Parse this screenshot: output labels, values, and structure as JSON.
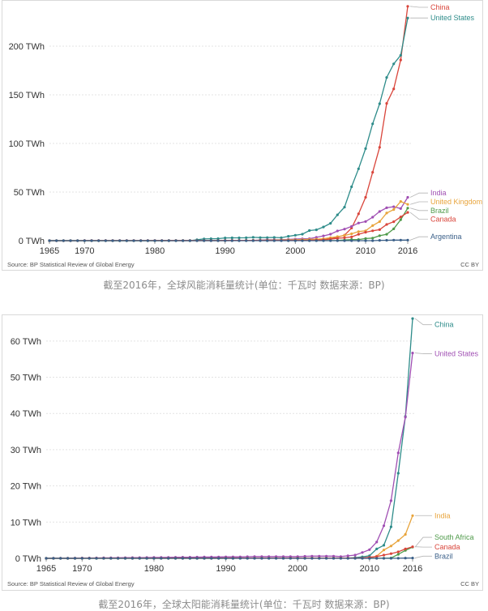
{
  "chart_data": [
    {
      "type": "line",
      "title": "",
      "xlabel": "",
      "ylabel": "",
      "x": [
        1965,
        1966,
        1967,
        1968,
        1969,
        1970,
        1971,
        1972,
        1973,
        1974,
        1975,
        1976,
        1977,
        1978,
        1979,
        1980,
        1981,
        1982,
        1983,
        1984,
        1985,
        1986,
        1987,
        1988,
        1989,
        1990,
        1991,
        1992,
        1993,
        1994,
        1995,
        1996,
        1997,
        1998,
        1999,
        2000,
        2001,
        2002,
        2003,
        2004,
        2005,
        2006,
        2007,
        2008,
        2009,
        2010,
        2011,
        2012,
        2013,
        2014,
        2015,
        2016
      ],
      "xticks": [
        1965,
        1970,
        1980,
        1990,
        2000,
        2010,
        2016
      ],
      "yticks": [
        0,
        50,
        100,
        150,
        200
      ],
      "ytick_labels": [
        "0 TWh",
        "50 TWh",
        "100 TWh",
        "150 TWh",
        "200 TWh"
      ],
      "ylim": [
        0,
        240
      ],
      "xlim": [
        1965,
        2016
      ],
      "grid": true,
      "source": "Source: BP Statistical Review of Global Energy",
      "license": "CC BY",
      "series": [
        {
          "name": "China",
          "color": "#d9453b",
          "legend_y": 240,
          "x": [
            2000,
            2001,
            2002,
            2003,
            2004,
            2005,
            2006,
            2007,
            2008,
            2009,
            2010,
            2011,
            2012,
            2013,
            2014,
            2015,
            2016
          ],
          "values": [
            0.6,
            0.7,
            0.8,
            1,
            1.3,
            1.9,
            3.7,
            5.7,
            13,
            27.6,
            44.6,
            70.3,
            96,
            141.2,
            156.1,
            185.8,
            241
          ]
        },
        {
          "name": "United States",
          "color": "#2e8c8a",
          "legend_y": 229,
          "x": [
            1965,
            1985,
            1987,
            1988,
            1989,
            1990,
            1991,
            1992,
            1993,
            1994,
            1995,
            1996,
            1997,
            1998,
            1999,
            2000,
            2001,
            2002,
            2003,
            2004,
            2005,
            2006,
            2007,
            2008,
            2009,
            2010,
            2011,
            2012,
            2013,
            2014,
            2015,
            2016
          ],
          "values": [
            0,
            0,
            1.8,
            2,
            2.1,
            2.8,
            2.9,
            2.9,
            3,
            3.4,
            3.2,
            3.2,
            3.3,
            3,
            4.5,
            5.6,
            6.7,
            10.4,
            11.2,
            14.1,
            17.8,
            26.6,
            34.5,
            55.4,
            73.9,
            94.7,
            120.2,
            140.8,
            167.8,
            181.8,
            190.7,
            229
          ]
        },
        {
          "name": "India",
          "color": "#a04fb3",
          "legend_y": 49,
          "x": [
            1965,
            1990,
            1992,
            1994,
            1996,
            1998,
            2000,
            2001,
            2002,
            2003,
            2004,
            2005,
            2006,
            2007,
            2008,
            2009,
            2010,
            2011,
            2012,
            2013,
            2014,
            2015,
            2016
          ],
          "values": [
            0,
            0,
            0.1,
            0.3,
            0.9,
            1,
            1.7,
            1.9,
            2.1,
            3.4,
            4.9,
            6.7,
            10,
            11.9,
            14.7,
            18.2,
            19.7,
            24.2,
            30,
            33.8,
            34.9,
            33,
            44.6
          ]
        },
        {
          "name": "United Kingdom",
          "color": "#e8a43b",
          "legend_y": 40,
          "x": [
            1965,
            1990,
            1995,
            2000,
            2002,
            2004,
            2006,
            2007,
            2008,
            2009,
            2010,
            2011,
            2012,
            2013,
            2014,
            2015,
            2016
          ],
          "values": [
            0,
            0,
            0.4,
            0.9,
            1.3,
            1.9,
            4.2,
            5.3,
            7.1,
            9.3,
            10.2,
            15.5,
            19.6,
            28.4,
            32,
            40.3,
            37.3
          ]
        },
        {
          "name": "Brazil",
          "color": "#4f9a4a",
          "legend_y": 31,
          "x": [
            1965,
            2005,
            2006,
            2007,
            2008,
            2009,
            2010,
            2011,
            2012,
            2013,
            2014,
            2015,
            2016
          ],
          "values": [
            0,
            0.1,
            0.2,
            0.7,
            1.2,
            1.2,
            2.2,
            2.7,
            5.1,
            6.6,
            12.2,
            21.6,
            33.5
          ]
        },
        {
          "name": "Canada",
          "color": "#d9453b",
          "legend_y": 22,
          "x": [
            1965,
            2000,
            2002,
            2004,
            2005,
            2006,
            2007,
            2008,
            2009,
            2010,
            2011,
            2012,
            2013,
            2014,
            2015,
            2016
          ],
          "values": [
            0,
            0.3,
            0.4,
            0.9,
            1.6,
            2.4,
            3,
            3.8,
            6.6,
            8.7,
            10.2,
            11.3,
            16.7,
            19.5,
            24.4,
            29.1
          ]
        },
        {
          "name": "Argentina",
          "color": "#3a5f88",
          "legend_y": 4,
          "x": [
            1965,
            2010,
            2011,
            2012,
            2013,
            2014,
            2015,
            2016
          ],
          "values": [
            0,
            0.02,
            0.02,
            0.35,
            0.45,
            0.6,
            0.6,
            0.6
          ]
        }
      ]
    },
    {
      "type": "line",
      "title": "",
      "xlabel": "",
      "ylabel": "",
      "x": [
        1965,
        1966,
        1967,
        1968,
        1969,
        1970,
        1971,
        1972,
        1973,
        1974,
        1975,
        1976,
        1977,
        1978,
        1979,
        1980,
        1981,
        1982,
        1983,
        1984,
        1985,
        1986,
        1987,
        1988,
        1989,
        1990,
        1991,
        1992,
        1993,
        1994,
        1995,
        1996,
        1997,
        1998,
        1999,
        2000,
        2001,
        2002,
        2003,
        2004,
        2005,
        2006,
        2007,
        2008,
        2009,
        2010,
        2011,
        2012,
        2013,
        2014,
        2015,
        2016
      ],
      "xticks": [
        1965,
        1970,
        1980,
        1990,
        2000,
        2010,
        2016
      ],
      "yticks": [
        0,
        10,
        20,
        30,
        40,
        50,
        60
      ],
      "ytick_labels": [
        "0 TWh",
        "10 TWh",
        "20 TWh",
        "30 TWh",
        "40 TWh",
        "50 TWh",
        "60 TWh"
      ],
      "ylim": [
        0,
        66
      ],
      "xlim": [
        1965,
        2016
      ],
      "grid": true,
      "source": "Source: BP Statistical Review of Global Energy",
      "license": "CC BY",
      "series": [
        {
          "name": "China",
          "color": "#2e8c8a",
          "legend_y": 64.5,
          "x": [
            1965,
            2005,
            2006,
            2007,
            2008,
            2009,
            2010,
            2011,
            2012,
            2013,
            2014,
            2015,
            2016
          ],
          "values": [
            0,
            0.1,
            0.1,
            0.1,
            0.2,
            0.4,
            0.7,
            2.6,
            3.6,
            8.7,
            23.5,
            39.2,
            66.2
          ]
        },
        {
          "name": "United States",
          "color": "#a04fb3",
          "legend_y": 56.5,
          "x": [
            1965,
            1990,
            1992,
            1994,
            1996,
            1998,
            2000,
            2002,
            2004,
            2005,
            2006,
            2007,
            2008,
            2009,
            2010,
            2011,
            2012,
            2013,
            2014,
            2015,
            2016
          ],
          "values": [
            0,
            0.4,
            0.4,
            0.5,
            0.5,
            0.5,
            0.5,
            0.6,
            0.6,
            0.6,
            0.5,
            0.7,
            0.9,
            1.6,
            2.4,
            4.5,
            9,
            15.9,
            29.1,
            39,
            56.7
          ]
        },
        {
          "name": "India",
          "color": "#e8a43b",
          "legend_y": 11.8,
          "x": [
            1965,
            2009,
            2010,
            2011,
            2012,
            2013,
            2014,
            2015,
            2016
          ],
          "values": [
            0,
            0.02,
            0.1,
            0.6,
            2.3,
            3.4,
            4.9,
            6.6,
            11.8
          ]
        },
        {
          "name": "South Africa",
          "color": "#4f9a4a",
          "legend_y": 5.8,
          "x": [
            1965,
            2012,
            2013,
            2014,
            2015,
            2016
          ],
          "values": [
            0,
            0.02,
            0.1,
            1.1,
            2.2,
            3.1
          ]
        },
        {
          "name": "Canada",
          "color": "#d9453b",
          "legend_y": 3.1,
          "x": [
            1965,
            2008,
            2009,
            2010,
            2011,
            2012,
            2013,
            2014,
            2015,
            2016
          ],
          "values": [
            0,
            0.1,
            0.1,
            0.3,
            0.5,
            0.9,
            1.3,
            1.8,
            2.6,
            3.2
          ]
        },
        {
          "name": "Brazil",
          "color": "#3a5f88",
          "legend_y": 0.6,
          "x": [
            1965,
            2013,
            2014,
            2015,
            2016
          ],
          "values": [
            0,
            0,
            0.02,
            0.06,
            0.1
          ]
        }
      ]
    }
  ],
  "captions": [
    "截至2016年，全球风能消耗量统计(单位：千瓦时 数据来源：BP)",
    "截至2016年，全球太阳能消耗量统计(单位：千瓦时 数据来源：BP)"
  ]
}
